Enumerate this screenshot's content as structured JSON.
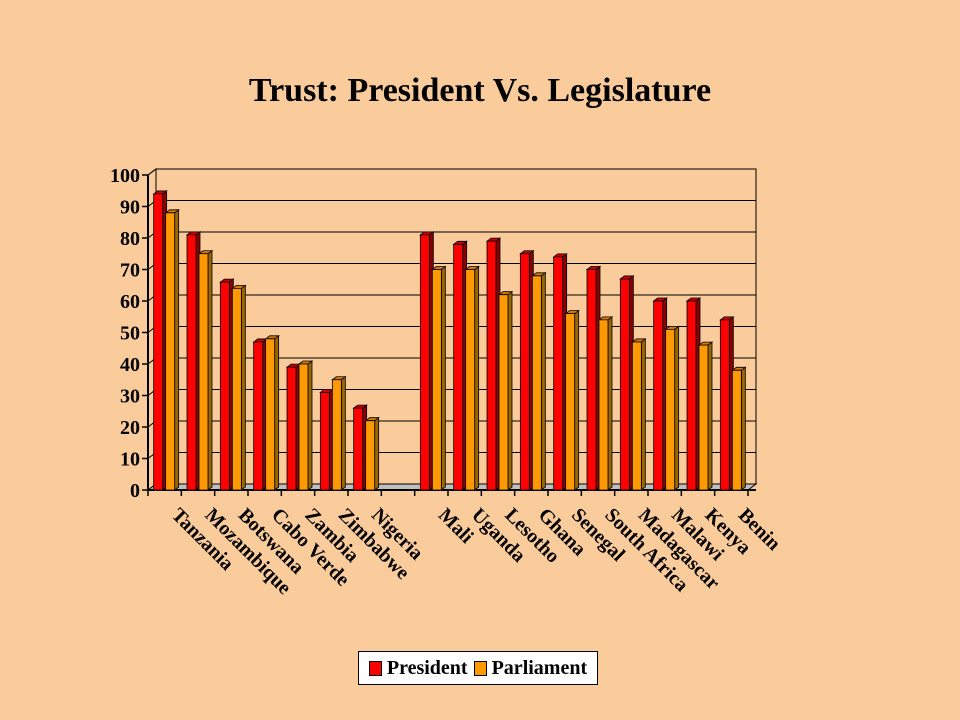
{
  "chart_data": {
    "type": "bar",
    "title": "Trust: President Vs. Legislature",
    "xlabel": "",
    "ylabel": "",
    "ylim": [
      0,
      100
    ],
    "yticks": [
      0,
      10,
      20,
      30,
      40,
      50,
      60,
      70,
      80,
      90,
      100
    ],
    "grid": true,
    "legend_position": "bottom",
    "categories": [
      "Tanzania",
      "Mozambique",
      "Botswana",
      "Cabo Verde",
      "Zambia",
      "Zimbabwe",
      "Nigeria",
      "",
      "Mali",
      "Uganda",
      "Lesotho",
      "Ghana",
      "Senegal",
      "South Africa",
      "Madagascar",
      "Malawi",
      "Kenya",
      "Benin"
    ],
    "series": [
      {
        "name": "President",
        "color": "#FF0000",
        "values": [
          94,
          81,
          66,
          47,
          39,
          31,
          26,
          null,
          81,
          78,
          79,
          75,
          74,
          70,
          67,
          60,
          60,
          54
        ]
      },
      {
        "name": "Parliament",
        "color": "#FF9900",
        "values": [
          88,
          75,
          64,
          48,
          40,
          35,
          22,
          null,
          70,
          70,
          62,
          68,
          56,
          54,
          47,
          51,
          46,
          38
        ]
      }
    ]
  }
}
